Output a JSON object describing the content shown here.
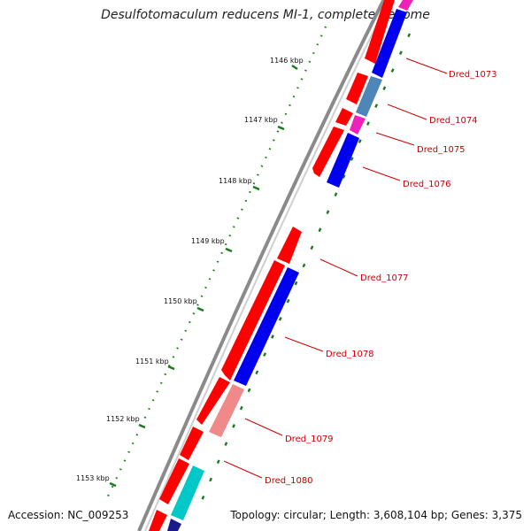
{
  "title": "Desulfotomaculum reducens MI-1, complete genome",
  "footer": {
    "accession": "Accession: NC_009253",
    "topology": "Topology: circular; Length: 3,608,104 bp; Genes: 3,375"
  },
  "colors": {
    "forward_gene": "#ff0000",
    "reverse_blue": "#0000ee",
    "reverse_steel": "#4f86b8",
    "reverse_magenta": "#ee22bb",
    "reverse_slate": "#6a5fc8",
    "reverse_salmon": "#f08a8a",
    "reverse_cyan": "#00c8c8",
    "reverse_navy": "#1a1a8c",
    "backbone": "#8a8a8a",
    "ticks": "#1a7a1a",
    "label_text": "#cc0000"
  },
  "ruler": [
    {
      "label": "1146 kbp"
    },
    {
      "label": "1147 kbp"
    },
    {
      "label": "1148 kbp"
    },
    {
      "label": "1149 kbp"
    },
    {
      "label": "1150 kbp"
    },
    {
      "label": "1151 kbp"
    },
    {
      "label": "1152 kbp"
    },
    {
      "label": "1153 kbp"
    }
  ],
  "gene_labels": [
    {
      "label": "Dred_1073"
    },
    {
      "label": "Dred_1074"
    },
    {
      "label": "Dred_1075"
    },
    {
      "label": "Dred_1076"
    },
    {
      "label": "Dred_1077"
    },
    {
      "label": "Dred_1078"
    },
    {
      "label": "Dred_1079"
    },
    {
      "label": "Dred_1080"
    }
  ]
}
